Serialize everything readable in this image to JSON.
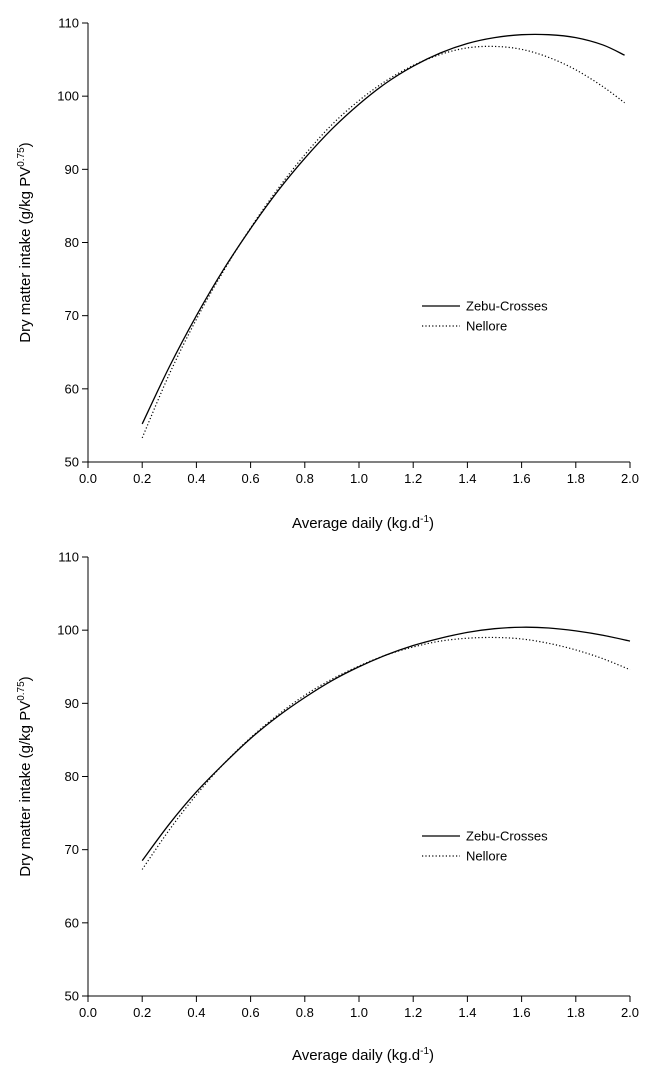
{
  "chart_data": [
    {
      "type": "line",
      "xlabel": "Average daily (kg.d",
      "xlabel_sup": "-1",
      "xlabel_tail": ")",
      "ylabel": "Dry matter intake (g/kg PV",
      "ylabel_sup": "0.75",
      "ylabel_tail": ")",
      "xlim": [
        0.0,
        2.0
      ],
      "ylim": [
        50,
        110
      ],
      "xticks": [
        "0.0",
        "0.2",
        "0.4",
        "0.6",
        "0.8",
        "1.0",
        "1.2",
        "1.4",
        "1.6",
        "1.8",
        "2.0"
      ],
      "yticks": [
        "50",
        "60",
        "70",
        "80",
        "90",
        "100",
        "110"
      ],
      "grid": false,
      "legend_position": "center-right",
      "series": [
        {
          "name": "Zebu-Crosses",
          "style": "solid",
          "x": [
            0.2,
            0.3,
            0.4,
            0.5,
            0.6,
            0.7,
            0.8,
            0.9,
            1.0,
            1.1,
            1.2,
            1.3,
            1.4,
            1.5,
            1.6,
            1.7,
            1.8,
            1.9,
            1.98
          ],
          "y": [
            55.2,
            63.0,
            70.0,
            76.3,
            81.9,
            87.0,
            91.5,
            95.5,
            98.9,
            101.8,
            104.1,
            105.9,
            107.2,
            108.0,
            108.4,
            108.4,
            108.0,
            107.0,
            105.6
          ]
        },
        {
          "name": "Nellore",
          "style": "dotted",
          "x": [
            0.2,
            0.3,
            0.4,
            0.5,
            0.6,
            0.7,
            0.8,
            0.9,
            1.0,
            1.1,
            1.2,
            1.3,
            1.4,
            1.5,
            1.6,
            1.7,
            1.8,
            1.9,
            1.98
          ],
          "y": [
            53.3,
            62.0,
            69.5,
            76.1,
            82.0,
            87.3,
            92.0,
            96.1,
            99.4,
            102.1,
            104.2,
            105.7,
            106.6,
            106.8,
            106.4,
            105.3,
            103.6,
            101.3,
            99.1
          ]
        }
      ]
    },
    {
      "type": "line",
      "xlabel": "Average daily (kg.d",
      "xlabel_sup": "-1",
      "xlabel_tail": ")",
      "ylabel": "Dry matter intake (g/kg PV",
      "ylabel_sup": "0.75",
      "ylabel_tail": ")",
      "xlim": [
        0.0,
        2.0
      ],
      "ylim": [
        50,
        110
      ],
      "xticks": [
        "0.0",
        "0.2",
        "0.4",
        "0.6",
        "0.8",
        "1.0",
        "1.2",
        "1.4",
        "1.6",
        "1.8",
        "2.0"
      ],
      "yticks": [
        "50",
        "60",
        "70",
        "80",
        "90",
        "100",
        "110"
      ],
      "grid": false,
      "legend_position": "center-right",
      "series": [
        {
          "name": "Zebu-Crosses",
          "style": "solid",
          "x": [
            0.2,
            0.3,
            0.4,
            0.5,
            0.6,
            0.7,
            0.8,
            0.9,
            1.0,
            1.1,
            1.2,
            1.3,
            1.4,
            1.5,
            1.6,
            1.7,
            1.8,
            1.9,
            2.0
          ],
          "y": [
            68.5,
            73.5,
            77.9,
            81.7,
            85.2,
            88.2,
            90.8,
            93.1,
            95.0,
            96.6,
            97.9,
            98.9,
            99.7,
            100.2,
            100.4,
            100.3,
            99.9,
            99.3,
            98.5
          ]
        },
        {
          "name": "Nellore",
          "style": "dotted",
          "x": [
            0.2,
            0.3,
            0.4,
            0.5,
            0.6,
            0.7,
            0.8,
            0.9,
            1.0,
            1.1,
            1.2,
            1.3,
            1.4,
            1.5,
            1.6,
            1.7,
            1.8,
            1.9,
            2.0
          ],
          "y": [
            67.3,
            72.7,
            77.5,
            81.7,
            85.3,
            88.4,
            91.1,
            93.3,
            95.1,
            96.6,
            97.7,
            98.5,
            98.9,
            99.0,
            98.8,
            98.2,
            97.3,
            96.1,
            94.6
          ]
        }
      ]
    }
  ]
}
